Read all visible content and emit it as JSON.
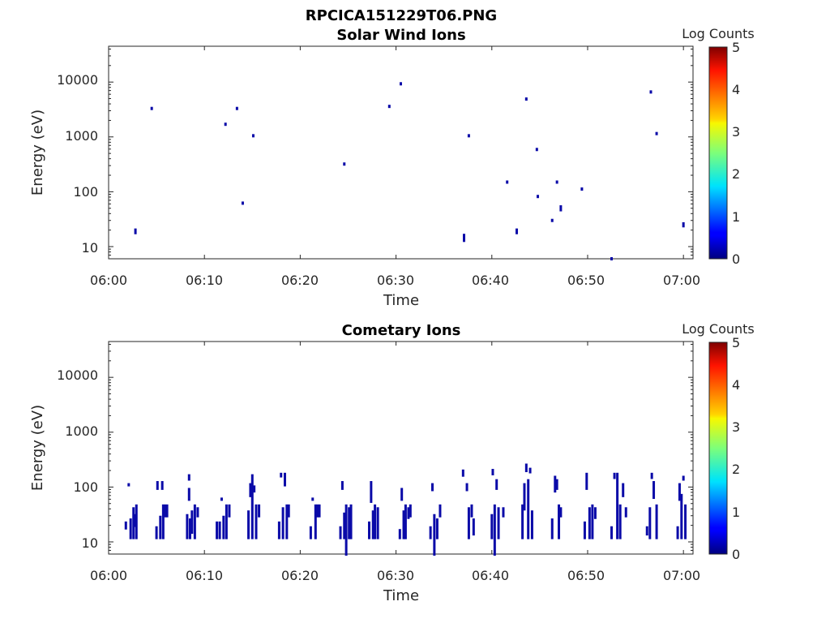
{
  "figure_title": "RPCICA151229T06.PNG",
  "colorbar": {
    "title": "Log Counts",
    "ticks": [
      "0",
      "1",
      "2",
      "3",
      "4",
      "5"
    ],
    "range": [
      0,
      5
    ],
    "colormap": "jet",
    "point_color": "#0a0aa8"
  },
  "chart_data": [
    {
      "type": "heatmap",
      "title": "Solar Wind Ions",
      "xlabel": "Time",
      "ylabel": "Energy (eV)",
      "xticks": [
        "06:00",
        "06:10",
        "06:20",
        "06:30",
        "06:40",
        "06:50",
        "07:00"
      ],
      "yticks": [
        "10",
        "100",
        "1000",
        "10000"
      ],
      "xlim_minutes": [
        0,
        61
      ],
      "ylim_ev": [
        6,
        45000
      ],
      "y_scale": "log",
      "points": [
        [
          2.8,
          18,
          20
        ],
        [
          4.5,
          3300,
          3300
        ],
        [
          12.2,
          1700,
          1700
        ],
        [
          13.4,
          3300,
          3300
        ],
        [
          14.0,
          62,
          62
        ],
        [
          15.1,
          1050,
          1050
        ],
        [
          24.6,
          320,
          320
        ],
        [
          29.3,
          3600,
          3600
        ],
        [
          30.5,
          9300,
          9300
        ],
        [
          37.1,
          13,
          16
        ],
        [
          37.6,
          1050,
          1050
        ],
        [
          41.6,
          150,
          150
        ],
        [
          42.6,
          18,
          20
        ],
        [
          43.6,
          4900,
          4900
        ],
        [
          44.7,
          590,
          590
        ],
        [
          44.8,
          82,
          82
        ],
        [
          46.3,
          30,
          30
        ],
        [
          46.8,
          150,
          150
        ],
        [
          47.2,
          47,
          53
        ],
        [
          49.4,
          112,
          112
        ],
        [
          52.5,
          6,
          6
        ],
        [
          56.6,
          6600,
          6600
        ],
        [
          57.2,
          1150,
          1150
        ],
        [
          60.0,
          24,
          26
        ]
      ]
    },
    {
      "type": "heatmap",
      "title": "Cometary Ions",
      "xlabel": "Time",
      "ylabel": "Energy (eV)",
      "xticks": [
        "06:00",
        "06:10",
        "06:20",
        "06:30",
        "06:40",
        "06:50",
        "07:00"
      ],
      "yticks": [
        "10",
        "100",
        "1000",
        "10000"
      ],
      "xlim_minutes": [
        0,
        61
      ],
      "ylim_ev": [
        6,
        45000
      ],
      "y_scale": "log",
      "points": [
        [
          1.8,
          18,
          22
        ],
        [
          2.1,
          110,
          110
        ],
        [
          2.3,
          12,
          25
        ],
        [
          2.6,
          12,
          40
        ],
        [
          2.8,
          20,
          30
        ],
        [
          2.9,
          12,
          45
        ],
        [
          5.0,
          12,
          18
        ],
        [
          5.1,
          95,
          120
        ],
        [
          5.4,
          12,
          28
        ],
        [
          5.6,
          95,
          120
        ],
        [
          5.7,
          12,
          45
        ],
        [
          5.9,
          30,
          45
        ],
        [
          6.1,
          30,
          45
        ],
        [
          8.2,
          12,
          30
        ],
        [
          8.4,
          140,
          160
        ],
        [
          8.4,
          60,
          90
        ],
        [
          8.5,
          12,
          25
        ],
        [
          8.7,
          15,
          35
        ],
        [
          9.0,
          12,
          45
        ],
        [
          9.3,
          30,
          40
        ],
        [
          11.3,
          12,
          22
        ],
        [
          11.6,
          12,
          22
        ],
        [
          11.8,
          60,
          60
        ],
        [
          12.0,
          12,
          28
        ],
        [
          12.3,
          12,
          45
        ],
        [
          12.6,
          30,
          45
        ],
        [
          14.6,
          12,
          35
        ],
        [
          14.8,
          70,
          110
        ],
        [
          15.0,
          12,
          160
        ],
        [
          15.2,
          85,
          100
        ],
        [
          15.4,
          12,
          45
        ],
        [
          15.7,
          30,
          45
        ],
        [
          17.8,
          12,
          22
        ],
        [
          18.0,
          160,
          170
        ],
        [
          18.2,
          12,
          40
        ],
        [
          18.4,
          110,
          170
        ],
        [
          18.6,
          12,
          45
        ],
        [
          18.8,
          30,
          45
        ],
        [
          21.1,
          12,
          18
        ],
        [
          21.3,
          60,
          60
        ],
        [
          21.6,
          12,
          45
        ],
        [
          21.8,
          30,
          45
        ],
        [
          22.0,
          30,
          45
        ],
        [
          24.2,
          12,
          18
        ],
        [
          24.4,
          95,
          120
        ],
        [
          24.6,
          12,
          32
        ],
        [
          24.8,
          6,
          45
        ],
        [
          25.1,
          12,
          40
        ],
        [
          25.3,
          12,
          45
        ],
        [
          27.2,
          12,
          22
        ],
        [
          27.4,
          55,
          120
        ],
        [
          27.6,
          12,
          35
        ],
        [
          27.8,
          12,
          45
        ],
        [
          28.1,
          12,
          40
        ],
        [
          30.4,
          12,
          16
        ],
        [
          30.6,
          60,
          90
        ],
        [
          30.8,
          12,
          35
        ],
        [
          31.0,
          12,
          45
        ],
        [
          31.3,
          28,
          40
        ],
        [
          31.5,
          30,
          45
        ],
        [
          33.6,
          12,
          18
        ],
        [
          33.8,
          90,
          110
        ],
        [
          34.0,
          6,
          30
        ],
        [
          34.3,
          12,
          25
        ],
        [
          34.6,
          30,
          45
        ],
        [
          37.0,
          165,
          195
        ],
        [
          37.4,
          90,
          110
        ],
        [
          37.6,
          12,
          40
        ],
        [
          37.9,
          30,
          45
        ],
        [
          38.1,
          14,
          25
        ],
        [
          40.0,
          12,
          30
        ],
        [
          40.1,
          175,
          200
        ],
        [
          40.3,
          6,
          45
        ],
        [
          40.5,
          95,
          130
        ],
        [
          40.7,
          12,
          40
        ],
        [
          41.2,
          30,
          40
        ],
        [
          43.2,
          12,
          45
        ],
        [
          43.4,
          40,
          110
        ],
        [
          43.6,
          200,
          250
        ],
        [
          43.8,
          12,
          130
        ],
        [
          44.0,
          190,
          210
        ],
        [
          44.2,
          12,
          35
        ],
        [
          46.3,
          12,
          25
        ],
        [
          46.6,
          85,
          150
        ],
        [
          46.8,
          95,
          130
        ],
        [
          47.0,
          12,
          45
        ],
        [
          47.2,
          30,
          40
        ],
        [
          49.7,
          12,
          22
        ],
        [
          49.9,
          95,
          170
        ],
        [
          50.2,
          12,
          40
        ],
        [
          50.5,
          12,
          45
        ],
        [
          50.8,
          28,
          40
        ],
        [
          52.5,
          12,
          18
        ],
        [
          52.8,
          150,
          170
        ],
        [
          53.1,
          12,
          170
        ],
        [
          53.4,
          12,
          45
        ],
        [
          53.7,
          70,
          110
        ],
        [
          54.0,
          30,
          40
        ],
        [
          56.2,
          14,
          18
        ],
        [
          56.5,
          12,
          40
        ],
        [
          56.7,
          150,
          170
        ],
        [
          56.9,
          65,
          120
        ],
        [
          57.2,
          12,
          45
        ],
        [
          59.4,
          12,
          18
        ],
        [
          59.6,
          60,
          110
        ],
        [
          59.8,
          12,
          70
        ],
        [
          60.0,
          140,
          150
        ],
        [
          60.2,
          12,
          45
        ]
      ]
    }
  ]
}
